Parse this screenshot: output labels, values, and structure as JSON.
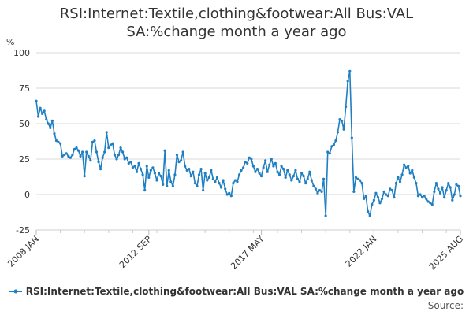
{
  "chart_data": {
    "type": "line",
    "title_line1": "RSI:Internet:Textile,clothing&footwear:All Bus:VAL",
    "title_line2": "SA:%change month a year ago",
    "ylabel": "%",
    "ylim": [
      -25,
      100
    ],
    "yticks": [
      -25,
      0,
      25,
      50,
      75,
      100
    ],
    "xlim": [
      "2008-01",
      "2025-08"
    ],
    "xticks": [
      {
        "label": "2008 JAN",
        "date": "2008-01"
      },
      {
        "label": "2012 SEP",
        "date": "2012-09"
      },
      {
        "label": "2017 MAY",
        "date": "2017-05"
      },
      {
        "label": "2022 JAN",
        "date": "2022-01"
      },
      {
        "label": "2025 AUG",
        "date": "2025-08"
      }
    ],
    "grid": "horizontal",
    "legend": "bottom",
    "source": "Source:",
    "series": [
      {
        "name": "RSI:Internet:Textile,clothing&footwear:All Bus:VAL SA:%change month a year ago",
        "color": "#1f7fc2",
        "points": [
          [
            "2008-01",
            66
          ],
          [
            "2008-02",
            55
          ],
          [
            "2008-03",
            61
          ],
          [
            "2008-04",
            57
          ],
          [
            "2008-05",
            59
          ],
          [
            "2008-06",
            53
          ],
          [
            "2008-07",
            50
          ],
          [
            "2008-08",
            47
          ],
          [
            "2008-09",
            52
          ],
          [
            "2008-10",
            43
          ],
          [
            "2008-11",
            38
          ],
          [
            "2008-12",
            37
          ],
          [
            "2009-01",
            36
          ],
          [
            "2009-02",
            27
          ],
          [
            "2009-03",
            28
          ],
          [
            "2009-04",
            29
          ],
          [
            "2009-05",
            27
          ],
          [
            "2009-06",
            26
          ],
          [
            "2009-07",
            28
          ],
          [
            "2009-08",
            32
          ],
          [
            "2009-09",
            33
          ],
          [
            "2009-10",
            31
          ],
          [
            "2009-11",
            27
          ],
          [
            "2009-12",
            30
          ],
          [
            "2010-01",
            13
          ],
          [
            "2010-02",
            30
          ],
          [
            "2010-03",
            27
          ],
          [
            "2010-04",
            24
          ],
          [
            "2010-05",
            37
          ],
          [
            "2010-06",
            38
          ],
          [
            "2010-07",
            30
          ],
          [
            "2010-08",
            23
          ],
          [
            "2010-09",
            18
          ],
          [
            "2010-10",
            26
          ],
          [
            "2010-11",
            30
          ],
          [
            "2010-12",
            44
          ],
          [
            "2011-01",
            33
          ],
          [
            "2011-02",
            35
          ],
          [
            "2011-03",
            36
          ],
          [
            "2011-04",
            28
          ],
          [
            "2011-05",
            25
          ],
          [
            "2011-06",
            28
          ],
          [
            "2011-07",
            33
          ],
          [
            "2011-08",
            30
          ],
          [
            "2011-09",
            25
          ],
          [
            "2011-10",
            26
          ],
          [
            "2011-11",
            22
          ],
          [
            "2011-12",
            23
          ],
          [
            "2012-01",
            19
          ],
          [
            "2012-02",
            20
          ],
          [
            "2012-03",
            16
          ],
          [
            "2012-04",
            22
          ],
          [
            "2012-05",
            18
          ],
          [
            "2012-06",
            14
          ],
          [
            "2012-07",
            3
          ],
          [
            "2012-08",
            20
          ],
          [
            "2012-09",
            12
          ],
          [
            "2012-10",
            17
          ],
          [
            "2012-11",
            19
          ],
          [
            "2012-12",
            15
          ],
          [
            "2013-01",
            10
          ],
          [
            "2013-02",
            15
          ],
          [
            "2013-03",
            13
          ],
          [
            "2013-04",
            7
          ],
          [
            "2013-05",
            31
          ],
          [
            "2013-06",
            6
          ],
          [
            "2013-07",
            17
          ],
          [
            "2013-08",
            9
          ],
          [
            "2013-09",
            6
          ],
          [
            "2013-10",
            14
          ],
          [
            "2013-11",
            28
          ],
          [
            "2013-12",
            23
          ],
          [
            "2014-01",
            24
          ],
          [
            "2014-02",
            30
          ],
          [
            "2014-03",
            20
          ],
          [
            "2014-04",
            17
          ],
          [
            "2014-05",
            18
          ],
          [
            "2014-06",
            13
          ],
          [
            "2014-07",
            16
          ],
          [
            "2014-08",
            8
          ],
          [
            "2014-09",
            6
          ],
          [
            "2014-10",
            14
          ],
          [
            "2014-11",
            18
          ],
          [
            "2014-12",
            3
          ],
          [
            "2015-01",
            15
          ],
          [
            "2015-02",
            10
          ],
          [
            "2015-03",
            12
          ],
          [
            "2015-04",
            17
          ],
          [
            "2015-05",
            11
          ],
          [
            "2015-06",
            9
          ],
          [
            "2015-07",
            12
          ],
          [
            "2015-08",
            8
          ],
          [
            "2015-09",
            5
          ],
          [
            "2015-10",
            10
          ],
          [
            "2015-11",
            4
          ],
          [
            "2015-12",
            0
          ],
          [
            "2016-01",
            1
          ],
          [
            "2016-02",
            -1
          ],
          [
            "2016-03",
            8
          ],
          [
            "2016-04",
            10
          ],
          [
            "2016-05",
            9
          ],
          [
            "2016-06",
            14
          ],
          [
            "2016-07",
            17
          ],
          [
            "2016-08",
            19
          ],
          [
            "2016-09",
            23
          ],
          [
            "2016-10",
            22
          ],
          [
            "2016-11",
            26
          ],
          [
            "2016-12",
            25
          ],
          [
            "2017-01",
            20
          ],
          [
            "2017-02",
            16
          ],
          [
            "2017-03",
            18
          ],
          [
            "2017-04",
            15
          ],
          [
            "2017-05",
            13
          ],
          [
            "2017-06",
            19
          ],
          [
            "2017-07",
            24
          ],
          [
            "2017-08",
            16
          ],
          [
            "2017-09",
            21
          ],
          [
            "2017-10",
            25
          ],
          [
            "2017-11",
            20
          ],
          [
            "2017-12",
            22
          ],
          [
            "2018-01",
            16
          ],
          [
            "2018-02",
            14
          ],
          [
            "2018-03",
            20
          ],
          [
            "2018-04",
            18
          ],
          [
            "2018-05",
            12
          ],
          [
            "2018-06",
            17
          ],
          [
            "2018-07",
            14
          ],
          [
            "2018-08",
            10
          ],
          [
            "2018-09",
            13
          ],
          [
            "2018-10",
            17
          ],
          [
            "2018-11",
            11
          ],
          [
            "2018-12",
            9
          ],
          [
            "2019-01",
            15
          ],
          [
            "2019-02",
            13
          ],
          [
            "2019-03",
            8
          ],
          [
            "2019-04",
            11
          ],
          [
            "2019-05",
            16
          ],
          [
            "2019-06",
            10
          ],
          [
            "2019-07",
            6
          ],
          [
            "2019-08",
            4
          ],
          [
            "2019-09",
            1
          ],
          [
            "2019-10",
            3
          ],
          [
            "2019-11",
            2
          ],
          [
            "2019-12",
            11
          ],
          [
            "2020-01",
            -15
          ],
          [
            "2020-02",
            30
          ],
          [
            "2020-03",
            29
          ],
          [
            "2020-04",
            34
          ],
          [
            "2020-05",
            35
          ],
          [
            "2020-06",
            38
          ],
          [
            "2020-07",
            44
          ],
          [
            "2020-08",
            53
          ],
          [
            "2020-09",
            52
          ],
          [
            "2020-10",
            46
          ],
          [
            "2020-11",
            62
          ],
          [
            "2020-12",
            80
          ],
          [
            "2021-01",
            87
          ],
          [
            "2021-02",
            40
          ],
          [
            "2021-03",
            2
          ],
          [
            "2021-04",
            12
          ],
          [
            "2021-05",
            11
          ],
          [
            "2021-06",
            10
          ],
          [
            "2021-07",
            8
          ],
          [
            "2021-08",
            -3
          ],
          [
            "2021-09",
            -1
          ],
          [
            "2021-10",
            -12
          ],
          [
            "2021-11",
            -15
          ],
          [
            "2021-12",
            -7
          ],
          [
            "2022-01",
            -4
          ],
          [
            "2022-02",
            1
          ],
          [
            "2022-03",
            -2
          ],
          [
            "2022-04",
            -6
          ],
          [
            "2022-05",
            -3
          ],
          [
            "2022-06",
            2
          ],
          [
            "2022-07",
            0
          ],
          [
            "2022-08",
            -1
          ],
          [
            "2022-09",
            4
          ],
          [
            "2022-10",
            3
          ],
          [
            "2022-11",
            -2
          ],
          [
            "2022-12",
            8
          ],
          [
            "2023-01",
            12
          ],
          [
            "2023-02",
            9
          ],
          [
            "2023-03",
            14
          ],
          [
            "2023-04",
            21
          ],
          [
            "2023-05",
            19
          ],
          [
            "2023-06",
            20
          ],
          [
            "2023-07",
            15
          ],
          [
            "2023-08",
            17
          ],
          [
            "2023-09",
            12
          ],
          [
            "2023-10",
            8
          ],
          [
            "2023-11",
            -1
          ],
          [
            "2023-12",
            0
          ],
          [
            "2024-01",
            -2
          ],
          [
            "2024-02",
            -1
          ],
          [
            "2024-03",
            -3
          ],
          [
            "2024-04",
            -5
          ],
          [
            "2024-05",
            -6
          ],
          [
            "2024-06",
            -7
          ],
          [
            "2024-07",
            2
          ],
          [
            "2024-08",
            8
          ],
          [
            "2024-09",
            4
          ],
          [
            "2024-10",
            1
          ],
          [
            "2024-11",
            5
          ],
          [
            "2024-12",
            -2
          ],
          [
            "2025-01",
            3
          ],
          [
            "2025-02",
            8
          ],
          [
            "2025-03",
            5
          ],
          [
            "2025-04",
            -4
          ],
          [
            "2025-05",
            0
          ],
          [
            "2025-06",
            7
          ],
          [
            "2025-07",
            6
          ],
          [
            "2025-08",
            -1
          ]
        ]
      }
    ]
  }
}
